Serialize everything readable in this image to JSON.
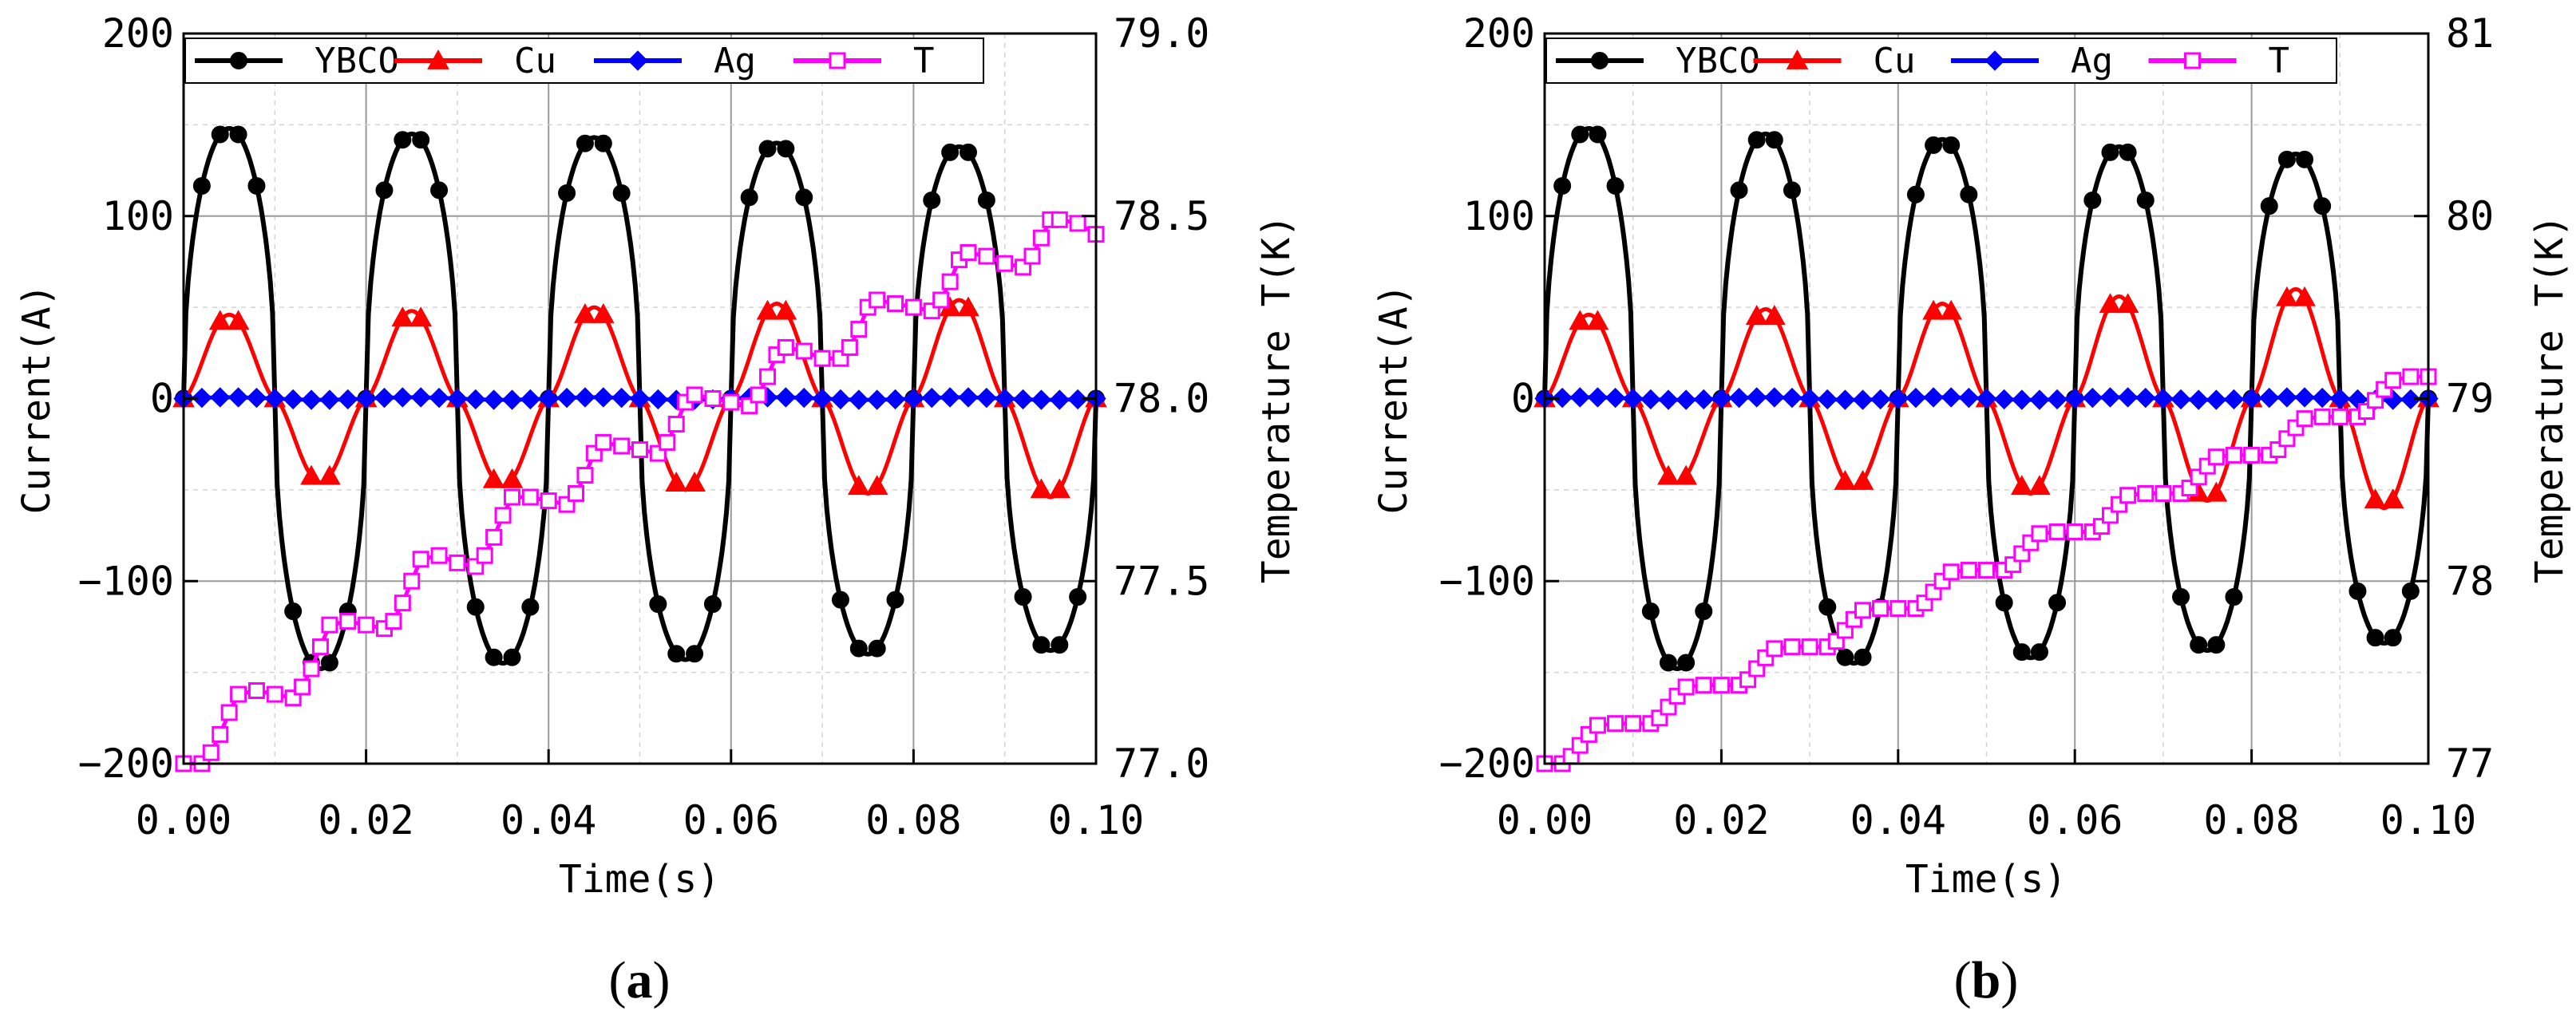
{
  "chart_data": [
    {
      "type": "line",
      "panel": "a",
      "caption_open": "(",
      "caption_letter": "a",
      "caption_close": ")",
      "xlabel": "Time(s)",
      "ylabel": "Current(A)",
      "y2label": "Temperature T(K)",
      "xlim": [
        0,
        0.1
      ],
      "ylim": [
        -200,
        200
      ],
      "y2lim": [
        77.0,
        79.0
      ],
      "xticks": [
        "0.00",
        "0.02",
        "0.04",
        "0.06",
        "0.08",
        "0.10"
      ],
      "yticks": [
        "−200",
        "−100",
        "0",
        "100",
        "200"
      ],
      "y2ticks": [
        "77.0",
        "77.5",
        "78.0",
        "78.5",
        "79.0"
      ],
      "grid": true,
      "legend_position": "top",
      "colors": {
        "YBCO": "#000000",
        "Cu": "#ff0000",
        "Ag": "#0000ff",
        "T": "#ff00ff"
      },
      "series": [
        {
          "name": "YBCO",
          "axis": "left",
          "marker": "circle",
          "amplitudes": [
            148,
            145,
            143,
            140,
            138,
            136
          ],
          "offset": 0
        },
        {
          "name": "Cu",
          "axis": "left",
          "marker": "triangle",
          "amplitudes": [
            46,
            48,
            50,
            52,
            54,
            57
          ],
          "offset": 0
        },
        {
          "name": "Ag",
          "axis": "right_zero",
          "marker": "diamond",
          "values_note_free": true,
          "amplitudes": [
            0.7,
            0.7,
            0.7,
            0.7,
            0.7,
            0.7
          ],
          "offset": 0
        },
        {
          "name": "T",
          "axis": "right",
          "marker": "square-open",
          "x": [
            0.0,
            0.002,
            0.003,
            0.004,
            0.005,
            0.006,
            0.008,
            0.01,
            0.012,
            0.013,
            0.014,
            0.015,
            0.016,
            0.018,
            0.02,
            0.022,
            0.023,
            0.024,
            0.025,
            0.026,
            0.028,
            0.03,
            0.032,
            0.033,
            0.034,
            0.035,
            0.036,
            0.038,
            0.04,
            0.042,
            0.043,
            0.044,
            0.045,
            0.046,
            0.048,
            0.05,
            0.052,
            0.053,
            0.054,
            0.055,
            0.056,
            0.058,
            0.06,
            0.062,
            0.063,
            0.064,
            0.065,
            0.066,
            0.068,
            0.07,
            0.072,
            0.073,
            0.074,
            0.075,
            0.076,
            0.078,
            0.08,
            0.082,
            0.083,
            0.084,
            0.085,
            0.086,
            0.088,
            0.09,
            0.092,
            0.093,
            0.094,
            0.095,
            0.096,
            0.098,
            0.1
          ],
          "values": [
            77.0,
            77.0,
            77.03,
            77.08,
            77.14,
            77.19,
            77.2,
            77.19,
            77.18,
            77.21,
            77.26,
            77.32,
            77.38,
            77.39,
            77.38,
            77.37,
            77.39,
            77.44,
            77.5,
            77.56,
            77.57,
            77.55,
            77.54,
            77.57,
            77.62,
            77.68,
            77.73,
            77.73,
            77.72,
            77.71,
            77.74,
            77.79,
            77.85,
            77.88,
            77.87,
            77.86,
            77.85,
            77.88,
            77.93,
            77.99,
            78.01,
            78.0,
            77.99,
            77.98,
            78.01,
            78.06,
            78.12,
            78.14,
            78.13,
            78.11,
            78.11,
            78.14,
            78.19,
            78.25,
            78.27,
            78.26,
            78.25,
            78.24,
            78.27,
            78.32,
            78.38,
            78.4,
            78.39,
            78.37,
            78.36,
            78.39,
            78.44,
            78.49,
            78.49,
            78.48,
            78.45
          ]
        }
      ]
    },
    {
      "type": "line",
      "panel": "b",
      "caption_open": "(",
      "caption_letter": "b",
      "caption_close": ")",
      "xlabel": "Time(s)",
      "ylabel": "Current(A)",
      "y2label": "Temperature T(K)",
      "xlim": [
        0,
        0.1
      ],
      "ylim": [
        -200,
        200
      ],
      "y2lim": [
        77,
        81
      ],
      "xticks": [
        "0.00",
        "0.02",
        "0.04",
        "0.06",
        "0.08",
        "0.10"
      ],
      "yticks": [
        "−200",
        "−100",
        "0",
        "100",
        "200"
      ],
      "y2ticks": [
        "77",
        "78",
        "79",
        "80",
        "81"
      ],
      "grid": true,
      "legend_position": "top",
      "colors": {
        "YBCO": "#000000",
        "Cu": "#ff0000",
        "Ag": "#0000ff",
        "T": "#ff00ff"
      },
      "series": [
        {
          "name": "YBCO",
          "axis": "left",
          "marker": "circle",
          "amplitudes": [
            148,
            145,
            142,
            138,
            134,
            128
          ],
          "offset": 0
        },
        {
          "name": "Cu",
          "axis": "left",
          "marker": "triangle",
          "amplitudes": [
            46,
            49,
            52,
            56,
            60,
            64
          ],
          "offset": 0
        },
        {
          "name": "Ag",
          "axis": "right_zero",
          "marker": "diamond",
          "amplitudes": [
            0.7,
            0.7,
            0.7,
            0.7,
            0.7,
            0.7
          ],
          "offset": 0
        },
        {
          "name": "T",
          "axis": "right",
          "marker": "square-open",
          "x": [
            0.0,
            0.002,
            0.003,
            0.004,
            0.005,
            0.006,
            0.008,
            0.01,
            0.012,
            0.013,
            0.014,
            0.015,
            0.016,
            0.018,
            0.02,
            0.022,
            0.023,
            0.024,
            0.025,
            0.026,
            0.028,
            0.03,
            0.032,
            0.033,
            0.034,
            0.035,
            0.036,
            0.038,
            0.04,
            0.042,
            0.043,
            0.044,
            0.045,
            0.046,
            0.048,
            0.05,
            0.052,
            0.053,
            0.054,
            0.055,
            0.056,
            0.058,
            0.06,
            0.062,
            0.063,
            0.064,
            0.065,
            0.066,
            0.068,
            0.07,
            0.072,
            0.073,
            0.074,
            0.075,
            0.076,
            0.078,
            0.08,
            0.082,
            0.083,
            0.084,
            0.085,
            0.086,
            0.088,
            0.09,
            0.092,
            0.093,
            0.094,
            0.095,
            0.096,
            0.098,
            0.1
          ],
          "values": [
            77.0,
            77.0,
            77.04,
            77.1,
            77.16,
            77.21,
            77.22,
            77.22,
            77.22,
            77.25,
            77.31,
            77.37,
            77.42,
            77.43,
            77.43,
            77.43,
            77.46,
            77.52,
            77.58,
            77.63,
            77.64,
            77.64,
            77.64,
            77.67,
            77.73,
            77.79,
            77.84,
            77.85,
            77.85,
            77.85,
            77.88,
            77.94,
            78.0,
            78.05,
            78.06,
            78.06,
            78.06,
            78.09,
            78.15,
            78.21,
            78.26,
            78.27,
            78.27,
            78.27,
            78.3,
            78.36,
            78.42,
            78.47,
            78.48,
            78.48,
            78.48,
            78.51,
            78.57,
            78.63,
            78.68,
            78.69,
            78.69,
            78.69,
            78.72,
            78.78,
            78.84,
            78.89,
            78.9,
            78.9,
            78.9,
            78.93,
            78.99,
            79.05,
            79.1,
            79.12,
            79.12
          ]
        }
      ]
    }
  ]
}
